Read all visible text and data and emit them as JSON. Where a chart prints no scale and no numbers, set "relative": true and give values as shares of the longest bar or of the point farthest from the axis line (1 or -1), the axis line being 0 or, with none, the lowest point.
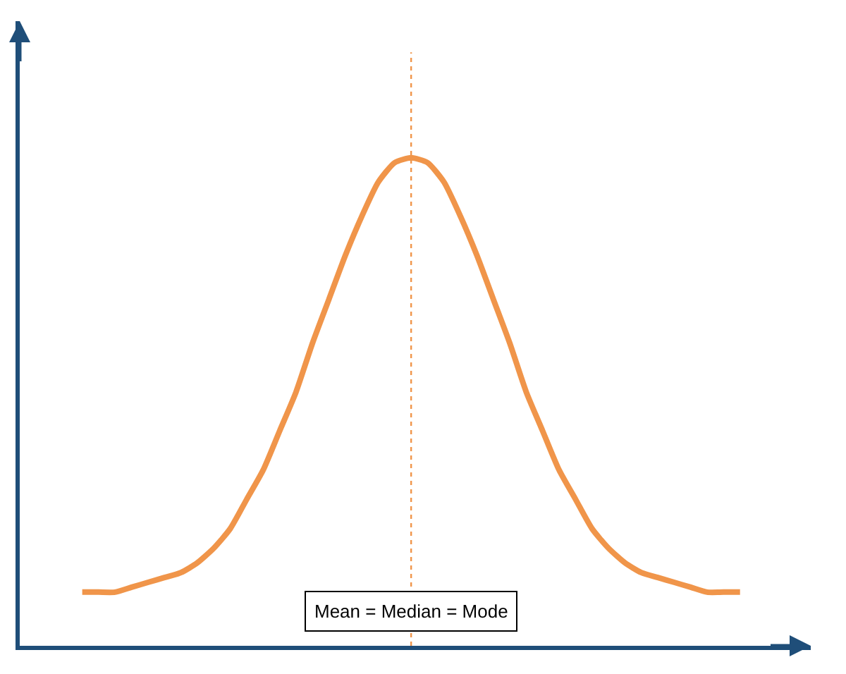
{
  "chart_data": {
    "type": "line",
    "relative": true,
    "categories": [
      null,
      null,
      null,
      null,
      null,
      null,
      null,
      null,
      null,
      null,
      null,
      null,
      null,
      null,
      null,
      null,
      null,
      null,
      null,
      null,
      null,
      null,
      null,
      null,
      null,
      null,
      null,
      null,
      null,
      null,
      null,
      null,
      null,
      null,
      null,
      null,
      null,
      null,
      null,
      null,
      null
    ],
    "series": [
      {
        "color": "#f0954a",
        "values": [
          0.11,
          0.11,
          0.11,
          0.12,
          0.13,
          0.14,
          0.15,
          0.17,
          0.2,
          0.24,
          0.3,
          0.36,
          0.44,
          0.52,
          0.62,
          0.71,
          0.8,
          0.88,
          0.95,
          0.99,
          1.0,
          0.99,
          0.95,
          0.88,
          0.8,
          0.71,
          0.62,
          0.52,
          0.44,
          0.36,
          0.3,
          0.24,
          0.2,
          0.17,
          0.15,
          0.14,
          0.13,
          0.12,
          0.11,
          0.11,
          0.11
        ]
      }
    ],
    "annotations": [
      "Mean = Median = Mode"
    ],
    "marker": "none",
    "line_style": "solid"
  }
}
